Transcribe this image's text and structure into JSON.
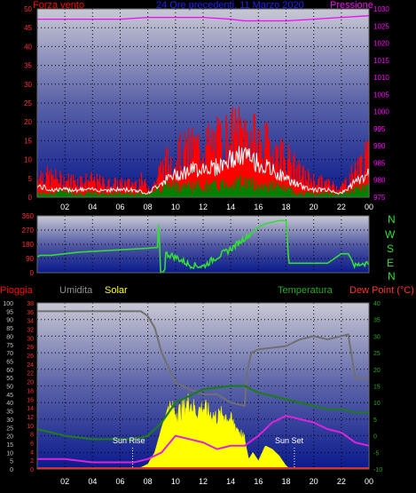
{
  "header": {
    "title": "24 Ore precedenti, 11 Marzo 2020"
  },
  "colors": {
    "wind": "#ff0000",
    "gust": "#ffffff",
    "avg_wind": "#008000",
    "pressure": "#ff00ff",
    "direction": "#33dd33",
    "rain": "#ff2020",
    "humidity": "#707070",
    "solar": "#ffff00",
    "temperature": "#1e7a1e",
    "dewpoint": "#dd22dd",
    "grid": "#000000"
  },
  "chart_data": [
    {
      "type": "line",
      "id": "wind-pressure",
      "left_label": "Forza vento",
      "right_label": "Pressione",
      "ylim_left": [
        0,
        50
      ],
      "ylim_right": [
        975,
        1030
      ],
      "yticks_left": [
        0,
        5,
        10,
        15,
        20,
        25,
        30,
        35,
        40,
        45,
        50
      ],
      "yticks_right": [
        975,
        980,
        985,
        990,
        995,
        1000,
        1005,
        1010,
        1015,
        1020,
        1025,
        1030
      ],
      "xlim": [
        0,
        24
      ],
      "xticks": [
        "02",
        "04",
        "06",
        "08",
        "10",
        "12",
        "14",
        "16",
        "18",
        "20",
        "22",
        "00"
      ],
      "series": [
        {
          "key": "wind",
          "axis": "left",
          "x": [
            0,
            1,
            2,
            3,
            4,
            5,
            6,
            7,
            7.5,
            8,
            8.5,
            9,
            10,
            11,
            12,
            13,
            14,
            15,
            16,
            17,
            18,
            19,
            20,
            21,
            22,
            23,
            24
          ],
          "values": [
            7,
            6,
            5,
            5,
            5,
            4,
            4,
            4,
            5,
            3,
            4,
            9,
            12,
            14,
            15,
            16,
            18,
            19,
            16,
            14,
            12,
            7,
            5,
            4,
            3,
            8,
            12
          ]
        },
        {
          "key": "gust",
          "axis": "left",
          "x": [
            0,
            1,
            2,
            3,
            4,
            5,
            6,
            7,
            8,
            9,
            10,
            11,
            12,
            13,
            14,
            15,
            16,
            17,
            18,
            19,
            20,
            21,
            22,
            23,
            24
          ],
          "values": [
            3,
            2,
            2,
            2,
            2,
            2,
            2,
            2,
            1,
            4,
            6,
            7,
            8,
            8,
            10,
            11,
            9,
            7,
            5,
            3,
            2,
            2,
            1,
            4,
            6
          ]
        },
        {
          "key": "avg_wind",
          "axis": "left",
          "x": [
            0,
            1,
            2,
            3,
            4,
            5,
            6,
            7,
            8,
            9,
            10,
            11,
            12,
            13,
            14,
            15,
            16,
            17,
            18,
            19,
            20,
            21,
            22,
            23,
            24
          ],
          "values": [
            1,
            1,
            2,
            1,
            1,
            1,
            1,
            1,
            1,
            3,
            3,
            3,
            3,
            3,
            4,
            4,
            3,
            3,
            2,
            1,
            1,
            1,
            1,
            2,
            3
          ]
        },
        {
          "key": "pressure",
          "axis": "right",
          "x": [
            0,
            2,
            4,
            6,
            8,
            10,
            12,
            14,
            15,
            16,
            18,
            20,
            22,
            24
          ],
          "values": [
            1027,
            1027,
            1027,
            1027,
            1027.5,
            1027.5,
            1027.5,
            1027,
            1026.5,
            1026.5,
            1026.5,
            1027,
            1027.5,
            1028
          ]
        }
      ]
    },
    {
      "type": "line",
      "id": "wind-direction",
      "ylim": [
        0,
        360
      ],
      "yticks": [
        0,
        90,
        180,
        270,
        360
      ],
      "compass_labels": [
        "N",
        "W",
        "S",
        "E",
        "N"
      ],
      "xlim": [
        0,
        24
      ],
      "series": [
        {
          "key": "direction",
          "x": [
            0,
            0.2,
            1,
            3,
            5,
            7,
            8,
            8.7,
            8.8,
            8.9,
            9.2,
            9.3,
            10,
            11,
            12,
            13,
            14,
            15,
            15.5,
            16,
            16.5,
            17,
            17.5,
            18,
            18.2,
            19,
            20,
            21,
            22,
            22.5,
            23,
            23.5,
            24
          ],
          "values": [
            100,
            110,
            110,
            130,
            140,
            150,
            155,
            160,
            355,
            0,
            10,
            120,
            100,
            50,
            40,
            100,
            150,
            220,
            250,
            290,
            310,
            320,
            330,
            330,
            60,
            60,
            60,
            60,
            120,
            120,
            40,
            60,
            60
          ]
        }
      ]
    },
    {
      "type": "line",
      "id": "temp-humidity-solar",
      "top_labels": [
        "Pioggia",
        "Umidita",
        "Solar",
        "Temperatura",
        "Dew Point (°C)"
      ],
      "ylim_outer": [
        0,
        100
      ],
      "ylim_rain": [
        0,
        38
      ],
      "ylim_temp": [
        -10,
        40
      ],
      "yticks_outer": [
        0,
        5,
        10,
        15,
        20,
        25,
        30,
        35,
        40,
        45,
        50,
        55,
        60,
        65,
        70,
        75,
        80,
        85,
        90,
        95,
        100
      ],
      "yticks_rain": [
        0,
        2,
        4,
        6,
        8,
        10,
        12,
        14,
        16,
        18,
        20,
        22,
        24,
        26,
        28,
        30,
        32,
        34,
        36,
        38
      ],
      "yticks_temp": [
        -10,
        -5,
        0,
        5,
        10,
        15,
        20,
        25,
        30,
        35,
        40
      ],
      "xlim": [
        0,
        24
      ],
      "xticks": [
        "02",
        "04",
        "06",
        "08",
        "10",
        "12",
        "14",
        "16",
        "18",
        "20",
        "22",
        "00"
      ],
      "annotations": [
        "Sun Rise",
        "Sun Set"
      ],
      "annotation_x": [
        6.9,
        18.6
      ],
      "series": [
        {
          "key": "humidity",
          "axis": "outer",
          "x": [
            0,
            1,
            2,
            3,
            4,
            5,
            6,
            7,
            7.5,
            8,
            8.5,
            9,
            10,
            11,
            12,
            13,
            14,
            15,
            15.2,
            15.5,
            16,
            17,
            18,
            19,
            20,
            21,
            22,
            22.5,
            23,
            24
          ],
          "values": [
            95,
            95,
            95,
            95,
            95,
            95,
            95,
            95,
            95,
            92,
            85,
            70,
            52,
            48,
            45,
            45,
            40,
            38,
            60,
            70,
            72,
            73,
            74,
            78,
            80,
            78,
            80,
            81,
            55,
            54
          ]
        },
        {
          "key": "temperature",
          "axis": "temp",
          "x": [
            0,
            2,
            4,
            6,
            7,
            8,
            9,
            10,
            11,
            12,
            13,
            14,
            15,
            16,
            17,
            18,
            19,
            20,
            21,
            22,
            23,
            24
          ],
          "values": [
            2,
            0,
            -1,
            -1,
            -1,
            0,
            4,
            10,
            12,
            14,
            14.5,
            15,
            15,
            13,
            12,
            11,
            10,
            9,
            8,
            8,
            7,
            7
          ]
        },
        {
          "key": "dewpoint",
          "axis": "temp",
          "x": [
            0,
            2,
            4,
            6,
            7,
            8,
            9,
            10,
            11,
            12,
            13,
            14,
            15,
            16,
            17,
            18,
            19,
            20,
            21,
            22,
            23,
            24
          ],
          "values": [
            -7,
            -7,
            -8,
            -8,
            -8,
            -7,
            -5,
            0,
            -1,
            -2,
            -4,
            -3,
            -3,
            0,
            4,
            6,
            5,
            4,
            2,
            1,
            -2,
            -3
          ]
        },
        {
          "key": "solar",
          "axis": "outer",
          "x": [
            6.8,
            7.5,
            8,
            8.5,
            9,
            9.5,
            10,
            10.5,
            11,
            11.5,
            12,
            12.5,
            13,
            13.5,
            14,
            14.5,
            15,
            15.3,
            15.6,
            16,
            16.5,
            17,
            17.5,
            18,
            18.3
          ],
          "values": [
            0,
            1,
            3,
            10,
            25,
            38,
            35,
            36,
            42,
            35,
            38,
            34,
            32,
            34,
            30,
            25,
            18,
            6,
            10,
            5,
            14,
            12,
            8,
            2,
            0
          ]
        },
        {
          "key": "rain",
          "axis": "rain",
          "x": [
            0,
            24
          ],
          "values": [
            0,
            0
          ]
        }
      ]
    }
  ]
}
